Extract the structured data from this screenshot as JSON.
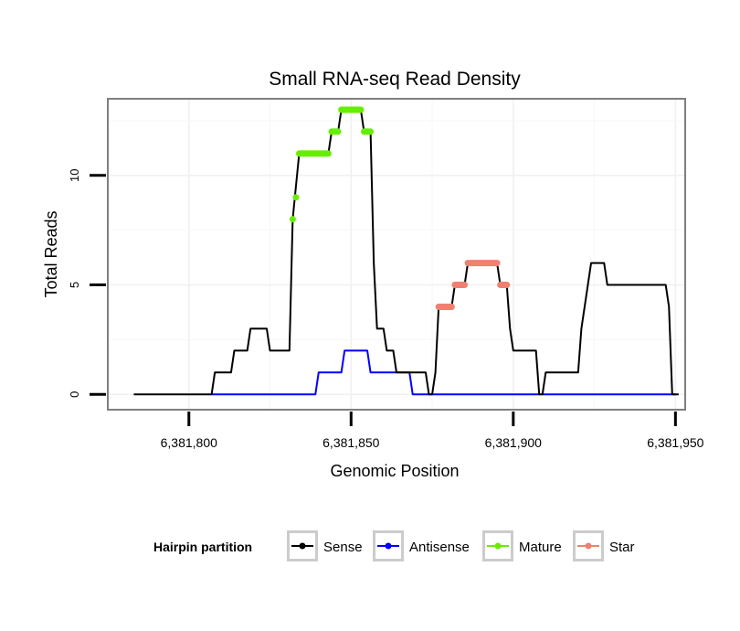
{
  "chart_data": {
    "type": "line",
    "title": "Small RNA-seq Read Density",
    "xlabel": "Genomic Position",
    "ylabel": "Total Reads",
    "xlim": [
      6381775,
      6381953
    ],
    "ylim": [
      -0.7,
      13.5
    ],
    "x_ticks": [
      6381800,
      6381850,
      6381900,
      6381950
    ],
    "x_tick_labels": [
      "6,381,800",
      "6,381,850",
      "6,381,900",
      "6,381,950"
    ],
    "y_ticks": [
      0,
      5,
      10
    ],
    "y_tick_labels": [
      "0",
      "5",
      "10"
    ],
    "grid": true,
    "legend": {
      "title": "Hairpin partition",
      "position": "bottom",
      "entries": [
        "Sense",
        "Antisense",
        "Mature",
        "Star"
      ]
    },
    "series": [
      {
        "name": "Sense",
        "color": "#000000",
        "style": "line",
        "points": [
          [
            6381783,
            0
          ],
          [
            6381807,
            0
          ],
          [
            6381808,
            1
          ],
          [
            6381813,
            1
          ],
          [
            6381814,
            2
          ],
          [
            6381818,
            2
          ],
          [
            6381819,
            3
          ],
          [
            6381824,
            3
          ],
          [
            6381825,
            2
          ],
          [
            6381831,
            2
          ],
          [
            6381832,
            8
          ],
          [
            6381834,
            11
          ],
          [
            6381843,
            11
          ],
          [
            6381844,
            12
          ],
          [
            6381846,
            12
          ],
          [
            6381847,
            13
          ],
          [
            6381853,
            13
          ],
          [
            6381854,
            12
          ],
          [
            6381856,
            12
          ],
          [
            6381857,
            6
          ],
          [
            6381858,
            3
          ],
          [
            6381860,
            3
          ],
          [
            6381861,
            2
          ],
          [
            6381863,
            2
          ],
          [
            6381864,
            1
          ],
          [
            6381873,
            1
          ],
          [
            6381874,
            0
          ],
          [
            6381875,
            0
          ],
          [
            6381876,
            1
          ],
          [
            6381877,
            4
          ],
          [
            6381881,
            4
          ],
          [
            6381882,
            5
          ],
          [
            6381885,
            5
          ],
          [
            6381886,
            6
          ],
          [
            6381895,
            6
          ],
          [
            6381896,
            5
          ],
          [
            6381898,
            5
          ],
          [
            6381899,
            3
          ],
          [
            6381900,
            2
          ],
          [
            6381907,
            2
          ],
          [
            6381908,
            0
          ],
          [
            6381909,
            0
          ],
          [
            6381910,
            1
          ],
          [
            6381920,
            1
          ],
          [
            6381921,
            3
          ],
          [
            6381924,
            6
          ],
          [
            6381928,
            6
          ],
          [
            6381929,
            5
          ],
          [
            6381947,
            5
          ],
          [
            6381948,
            4
          ],
          [
            6381949,
            0
          ],
          [
            6381951,
            0
          ]
        ]
      },
      {
        "name": "Antisense",
        "color": "#0000ff",
        "style": "line",
        "points": [
          [
            6381807,
            0
          ],
          [
            6381839,
            0
          ],
          [
            6381840,
            1
          ],
          [
            6381847,
            1
          ],
          [
            6381848,
            2
          ],
          [
            6381855,
            2
          ],
          [
            6381856,
            1
          ],
          [
            6381868,
            1
          ],
          [
            6381869,
            0
          ],
          [
            6381950,
            0
          ]
        ]
      },
      {
        "name": "Mature",
        "color": "#66ee00",
        "style": "segments",
        "segments": [
          [
            6381832,
            6381832,
            8
          ],
          [
            6381833,
            6381833,
            9
          ],
          [
            6381834,
            6381843,
            11
          ],
          [
            6381844,
            6381846,
            12
          ],
          [
            6381847,
            6381853,
            13
          ],
          [
            6381854,
            6381856,
            12
          ]
        ]
      },
      {
        "name": "Star",
        "color": "#f08070",
        "style": "segments",
        "segments": [
          [
            6381877,
            6381881,
            4
          ],
          [
            6381882,
            6381885,
            5
          ],
          [
            6381886,
            6381895,
            6
          ],
          [
            6381896,
            6381898,
            5
          ]
        ]
      }
    ]
  }
}
